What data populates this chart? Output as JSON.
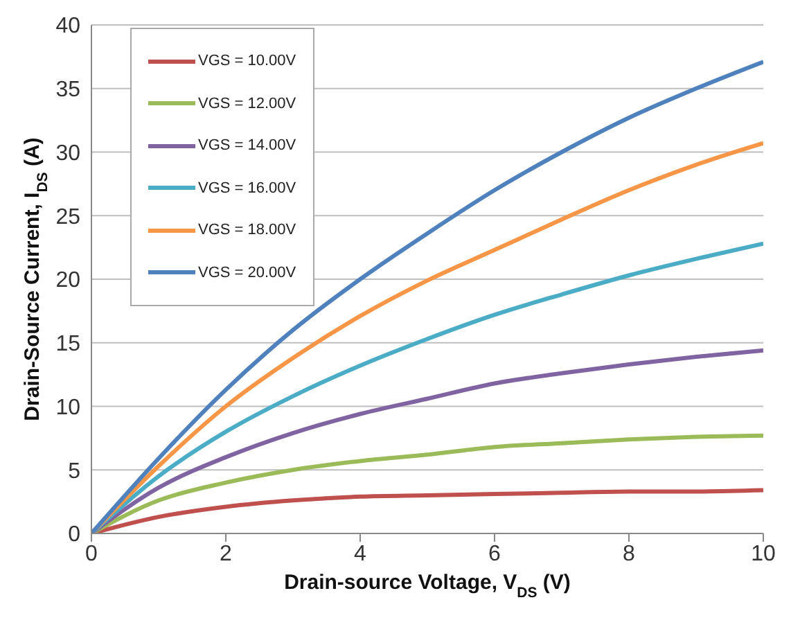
{
  "chart_data": {
    "type": "line",
    "xlabel": "Drain-source Voltage, V$_{DS}$ (V)",
    "ylabel": "Drain-Source Current, I$_{DS}$ (A)",
    "x": [
      0,
      1,
      2,
      3,
      4,
      5,
      6,
      7,
      8,
      9,
      10
    ],
    "series": [
      {
        "name": "VGS = 10.00V",
        "color": "#c0504d",
        "values": [
          0,
          1.3,
          2.1,
          2.6,
          2.9,
          3.0,
          3.1,
          3.2,
          3.3,
          3.3,
          3.4
        ]
      },
      {
        "name": "VGS = 12.00V",
        "color": "#9bbb59",
        "values": [
          0,
          2.6,
          4.0,
          5.0,
          5.7,
          6.2,
          6.8,
          7.1,
          7.4,
          7.6,
          7.7
        ]
      },
      {
        "name": "VGS = 14.00V",
        "color": "#8064a2",
        "values": [
          0,
          3.6,
          6.0,
          7.9,
          9.4,
          10.6,
          11.8,
          12.6,
          13.3,
          13.9,
          14.4
        ]
      },
      {
        "name": "VGS = 16.00V",
        "color": "#4bacc6",
        "values": [
          0,
          4.5,
          8.0,
          10.8,
          13.2,
          15.3,
          17.2,
          18.8,
          20.3,
          21.6,
          22.8
        ]
      },
      {
        "name": "VGS = 18.00V",
        "color": "#f79646",
        "values": [
          0,
          5.3,
          10.0,
          13.8,
          17.1,
          19.9,
          22.3,
          24.7,
          27.0,
          29.0,
          30.7
        ]
      },
      {
        "name": "VGS = 20.00V",
        "color": "#4f81bd",
        "values": [
          0,
          5.9,
          11.3,
          16.0,
          20.0,
          23.6,
          27.0,
          30.0,
          32.7,
          35.0,
          37.1
        ]
      }
    ],
    "xlim": [
      0,
      10
    ],
    "xticks": [
      0,
      2,
      4,
      6,
      8,
      10
    ],
    "ylim": [
      0,
      40
    ],
    "yticks": [
      0,
      5,
      10,
      15,
      20,
      25,
      30,
      35,
      40
    ],
    "grid": "y",
    "legend": "top left",
    "marker": "none",
    "line_style": "solid"
  }
}
